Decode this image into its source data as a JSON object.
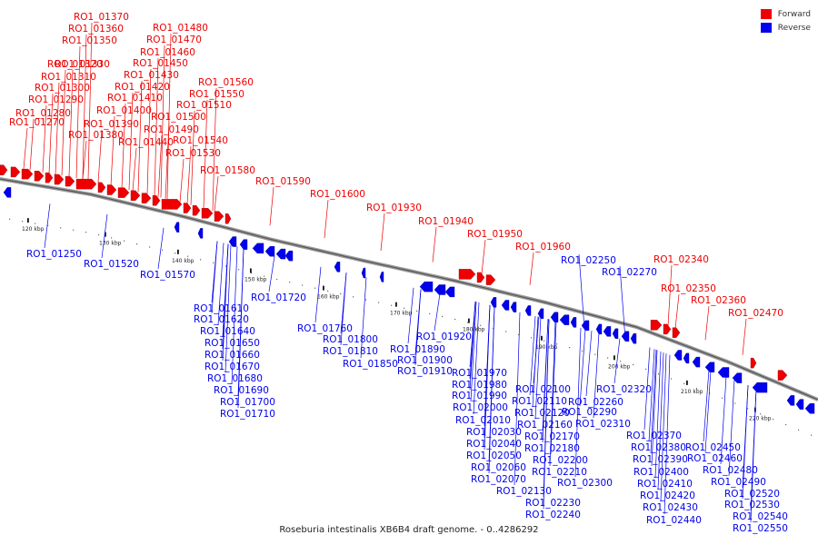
{
  "legend": {
    "forward": {
      "label": "Forward",
      "color": "#ee0000"
    },
    "reverse": {
      "label": "Reverse",
      "color": "#0000ee"
    }
  },
  "caption": "Roseburia intestinalis XB6B4 draft genome. - 0..4286292",
  "colors": {
    "forward": "#ee0000",
    "reverse": "#0000ee",
    "backbone": "#666666"
  },
  "ticks": [
    "120 kbp",
    "130 kbp",
    "140 kbp",
    "150 kbp",
    "160 kbp",
    "170 kbp",
    "180 kbp",
    "190 kbp",
    "200 kbp",
    "210 kbp",
    "220 kbp"
  ],
  "forward_labels": [
    "RO1_01370",
    "RO1_01360",
    "RO1_01350",
    "RO1_01330",
    "RO1_01320",
    "RO1_01310",
    "RO1_01300",
    "RO1_01290",
    "RO1_01280",
    "RO1_01270",
    "RO1_01480",
    "RO1_01470",
    "RO1_01460",
    "RO1_01450",
    "RO1_01430",
    "RO1_01420",
    "RO1_01410",
    "RO1_01400",
    "RO1_01390",
    "RO1_01380",
    "RO1_01560",
    "RO1_01550",
    "RO1_01510",
    "RO1_01500",
    "RO1_01490",
    "RO1_01440",
    "RO1_01540",
    "RO1_01530",
    "RO1_01580",
    "RO1_01590",
    "RO1_01600",
    "RO1_01930",
    "RO1_01940",
    "RO1_01950",
    "RO1_01960",
    "RO1_02340",
    "RO1_02350",
    "RO1_02360",
    "RO1_02470"
  ],
  "reverse_labels": [
    "RO1_01250",
    "RO1_01520",
    "RO1_01570",
    "RO1_01610",
    "RO1_01620",
    "RO1_01640",
    "RO1_01650",
    "RO1_01660",
    "RO1_01670",
    "RO1_01680",
    "RO1_01690",
    "RO1_01700",
    "RO1_01710",
    "RO1_01720",
    "RO1_01760",
    "RO1_01800",
    "RO1_01810",
    "RO1_01850",
    "RO1_01890",
    "RO1_01900",
    "RO1_01910",
    "RO1_01920",
    "RO1_01970",
    "RO1_01980",
    "RO1_01990",
    "RO1_02000",
    "RO1_02010",
    "RO1_02030",
    "RO1_02040",
    "RO1_02050",
    "RO1_02060",
    "RO1_02070",
    "RO1_02130",
    "RO1_02100",
    "RO1_02110",
    "RO1_02120",
    "RO1_02160",
    "RO1_02170",
    "RO1_02180",
    "RO1_02200",
    "RO1_02210",
    "RO1_02230",
    "RO1_02240",
    "RO1_02250",
    "RO1_02270",
    "RO1_02260",
    "RO1_02290",
    "RO1_02310",
    "RO1_02320",
    "RO1_02300",
    "RO1_02370",
    "RO1_02380",
    "RO1_02390",
    "RO1_02400",
    "RO1_02410",
    "RO1_02420",
    "RO1_02430",
    "RO1_02440",
    "RO1_02450",
    "RO1_02460",
    "RO1_02480",
    "RO1_02490",
    "RO1_02520",
    "RO1_02530",
    "RO1_02540",
    "RO1_02550"
  ]
}
